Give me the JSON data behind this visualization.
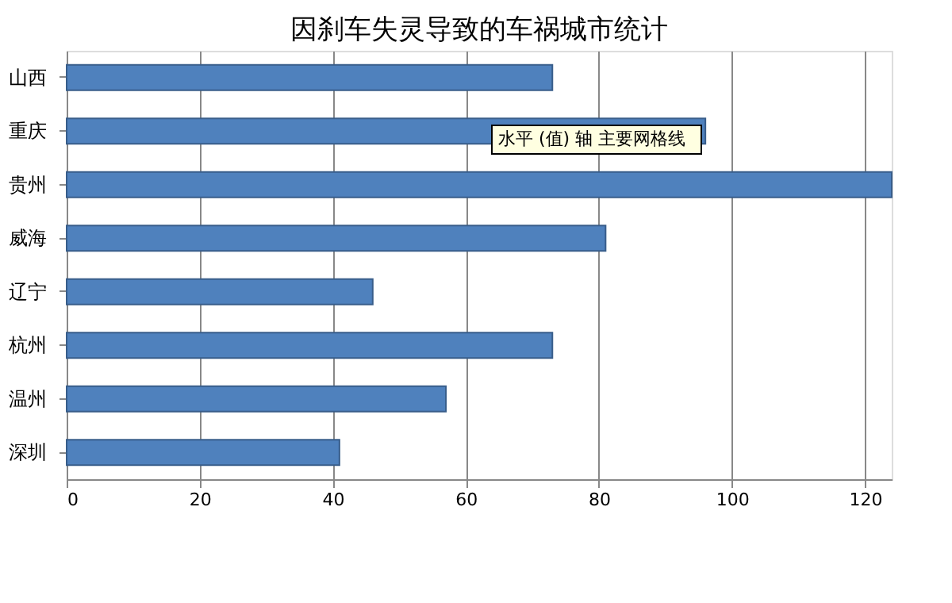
{
  "chart_data": {
    "type": "bar",
    "orientation": "horizontal",
    "title": "因刹车失灵导致的车祸城市统计",
    "categories": [
      "山西",
      "重庆",
      "贵州",
      "威海",
      "辽宁",
      "杭州",
      "温州",
      "深圳"
    ],
    "values": [
      73,
      96,
      124,
      81,
      46,
      73,
      57,
      41
    ],
    "color": "#4f81bd",
    "xlim": [
      0,
      124
    ],
    "xticks": [
      0,
      20,
      40,
      60,
      80,
      100,
      120
    ],
    "grid": "x",
    "annotations": [
      "水平 (值) 轴 主要网格线"
    ]
  }
}
